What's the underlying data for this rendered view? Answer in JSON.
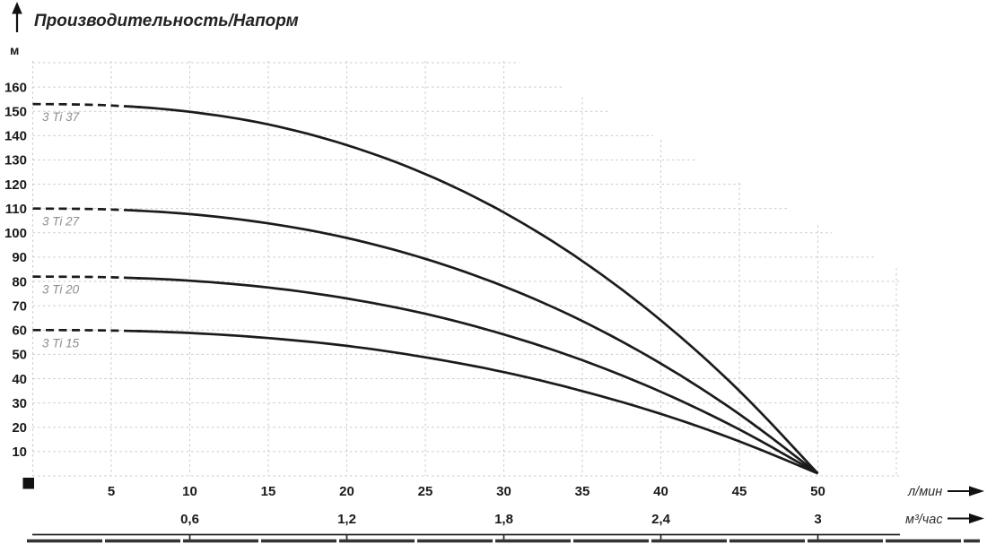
{
  "page": {
    "background": "#ffffff"
  },
  "chart_data": {
    "type": "line",
    "title": "Производительность/Напорм",
    "ylabel": "м",
    "xlabel_primary": "л/мин",
    "xlabel_secondary": "м³/час",
    "ylim": [
      0,
      170
    ],
    "xlim_lmin": [
      0,
      55
    ],
    "grid": {
      "visible": true,
      "style": "dashed",
      "color": "#c9c9c9"
    },
    "y_ticks": [
      10,
      20,
      30,
      40,
      50,
      60,
      70,
      80,
      90,
      100,
      110,
      120,
      130,
      140,
      150,
      160
    ],
    "x_ticks_lmin": [
      5,
      10,
      15,
      20,
      25,
      30,
      35,
      40,
      45,
      50
    ],
    "x_ticks_m3h": [
      {
        "label": "0,6",
        "at_lmin": 10
      },
      {
        "label": "1,2",
        "at_lmin": 20
      },
      {
        "label": "1,8",
        "at_lmin": 30
      },
      {
        "label": "2,4",
        "at_lmin": 40
      },
      {
        "label": "3",
        "at_lmin": 50
      }
    ],
    "x": [
      0,
      5,
      10,
      15,
      20,
      25,
      30,
      35,
      40,
      45,
      50
    ],
    "series": [
      {
        "name": "3 Ti 37",
        "dashed_until": 6.9,
        "values": [
          153,
          152.4,
          149.8,
          144.6,
          136.1,
          124.2,
          108.4,
          88.4,
          64.0,
          35.0,
          1
        ]
      },
      {
        "name": "3 Ti 27",
        "dashed_until": 6.9,
        "values": [
          110,
          109.6,
          107.7,
          103.9,
          97.9,
          89.3,
          78.0,
          63.7,
          46.2,
          25.4,
          1
        ]
      },
      {
        "name": "3 Ti 20",
        "dashed_until": 6.9,
        "values": [
          82,
          81.7,
          80.3,
          77.5,
          73.0,
          66.7,
          58.2,
          47.6,
          34.6,
          19.1,
          1
        ]
      },
      {
        "name": "3 Ti 15",
        "dashed_until": 6.9,
        "values": [
          60,
          59.8,
          58.8,
          56.7,
          53.5,
          48.8,
          42.7,
          34.9,
          25.5,
          14.2,
          1
        ]
      }
    ],
    "curve_color": "#1b1b1b",
    "curve_label_color": "#8d8d8d",
    "axis_color": "#1c1c1c"
  }
}
